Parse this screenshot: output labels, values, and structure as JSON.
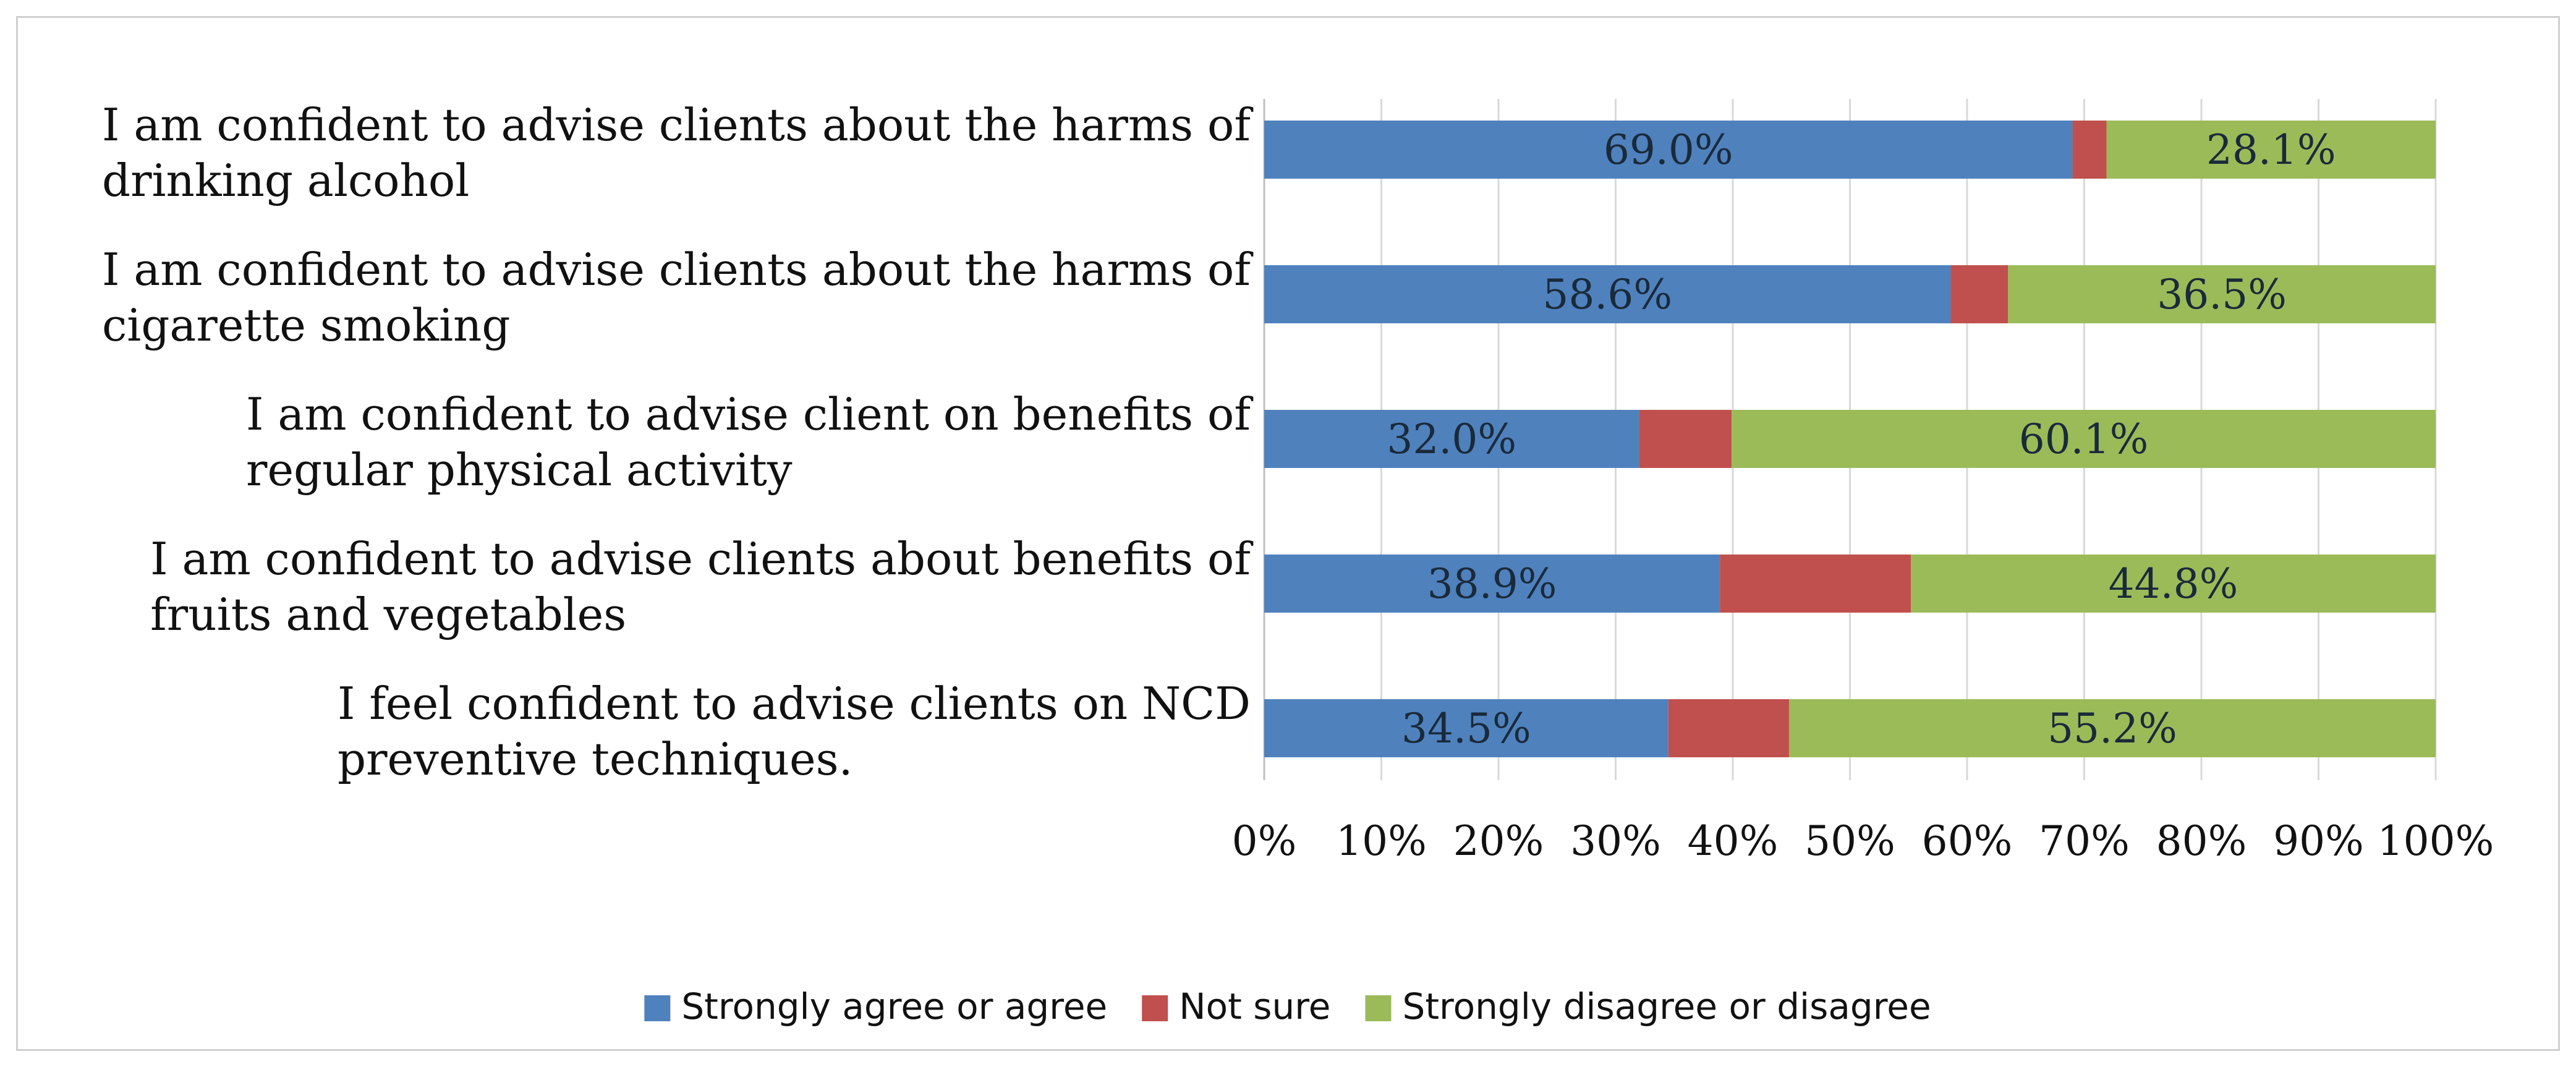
{
  "chart_data": {
    "type": "bar",
    "orientation": "horizontal",
    "stacked": "100%",
    "categories": [
      {
        "line1": "I am confident to advise clients about the harms of",
        "line2": "drinking alcohol"
      },
      {
        "line1": "I am confident to advise clients about the harms of",
        "line2": "cigarette smoking"
      },
      {
        "line1": "I am confident to advise client on benefits of",
        "line2": "regular physical activity"
      },
      {
        "line1": "I am confident to advise clients about benefits of",
        "line2": "fruits and vegetables"
      },
      {
        "line1": "I feel confident to advise clients on NCD",
        "line2": "preventive techniques."
      }
    ],
    "series": [
      {
        "name": "Strongly agree or agree",
        "color": "#4f81bd",
        "values": [
          69.0,
          58.6,
          32.0,
          38.9,
          34.5
        ],
        "labels": [
          "69.0%",
          "58.6%",
          "32.0%",
          "38.9%",
          "34.5%"
        ]
      },
      {
        "name": "Not sure",
        "color": "#c0504d",
        "values": [
          2.9,
          4.9,
          7.9,
          16.3,
          10.3
        ],
        "labels": [
          "",
          "",
          "",
          "",
          ""
        ]
      },
      {
        "name": "Strongly disagree or disagree",
        "color": "#9bbb59",
        "values": [
          28.1,
          36.5,
          60.1,
          44.8,
          55.2
        ],
        "labels": [
          "28.1%",
          "36.5%",
          "60.1%",
          "44.8%",
          "55.2%"
        ]
      }
    ],
    "x_ticks": [
      "0%",
      "10%",
      "20%",
      "30%",
      "40%",
      "50%",
      "60%",
      "70%",
      "80%",
      "90%",
      "100%"
    ],
    "xlim": [
      0,
      100
    ],
    "grid": true,
    "legend_position": "bottom",
    "title": "",
    "xlabel": "",
    "ylabel": ""
  }
}
